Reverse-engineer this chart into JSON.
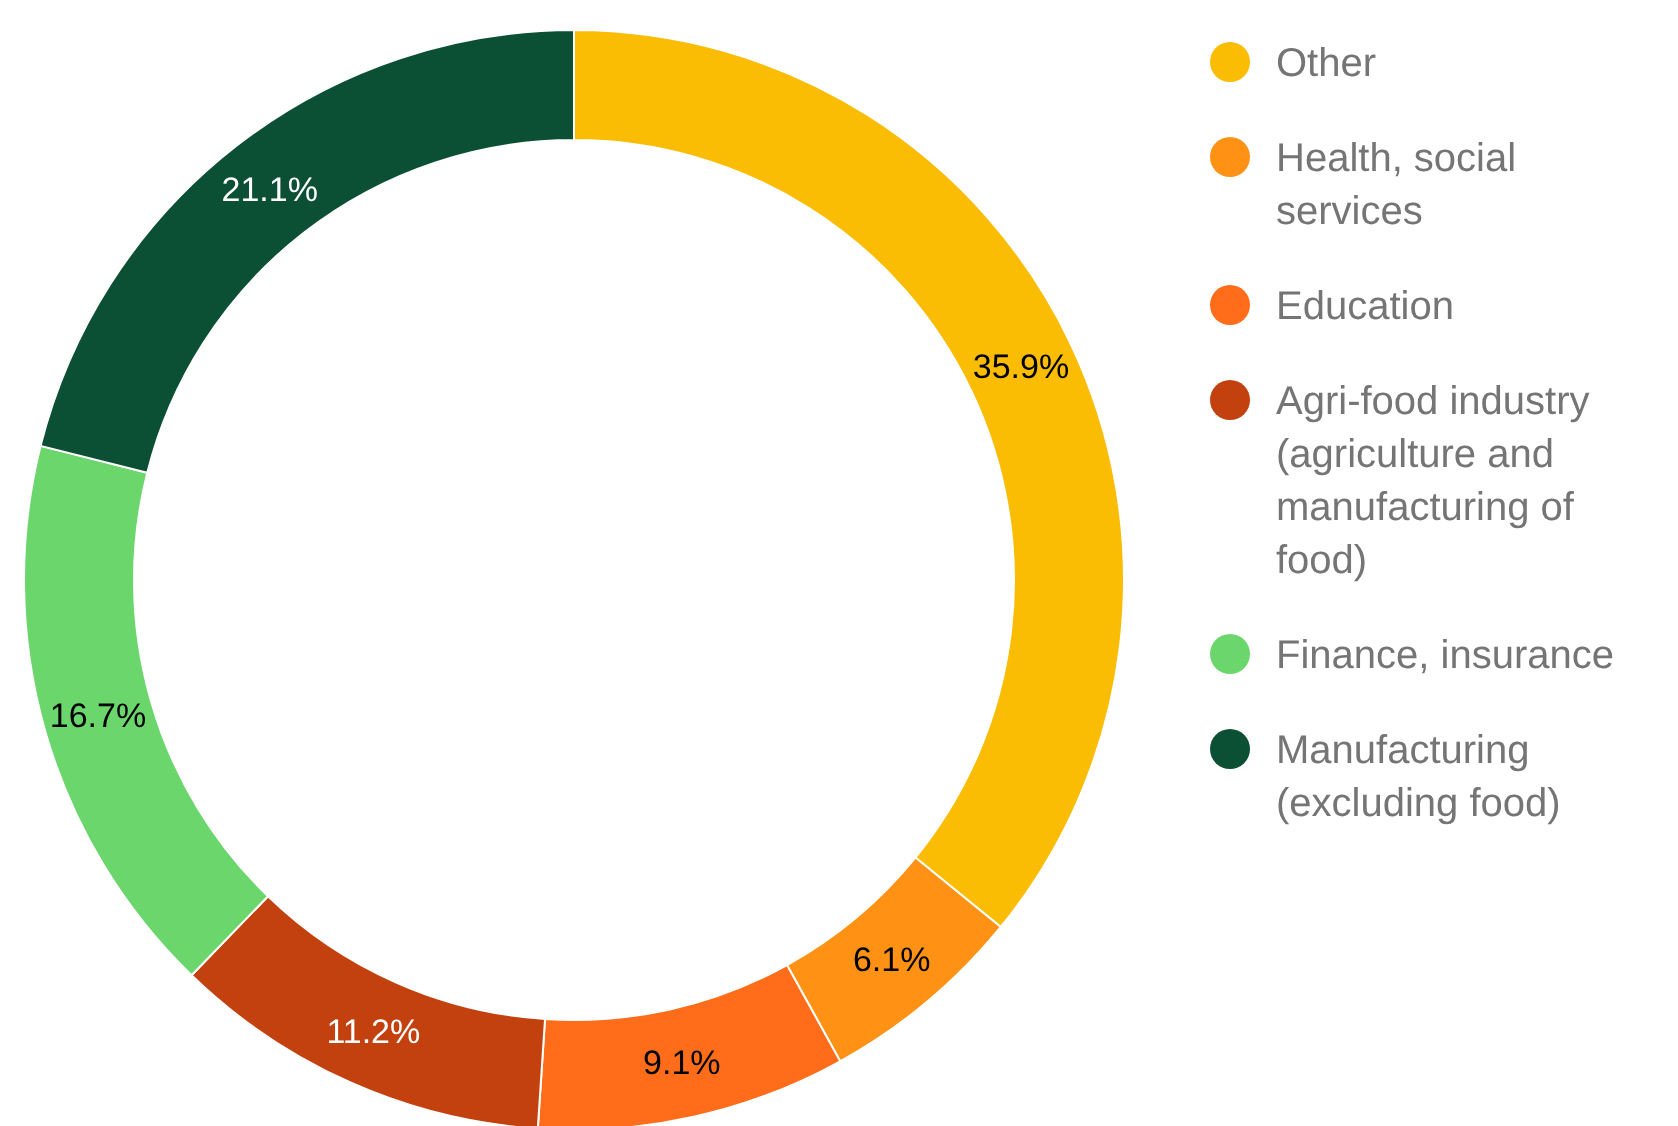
{
  "chart_data": {
    "type": "donut",
    "categories": [
      "Other",
      "Health, social services",
      "Education",
      "Agri-food industry (agriculture and manufacturing of food)",
      "Finance, insurance",
      "Manufacturing (excluding food)"
    ],
    "values": [
      35.9,
      6.1,
      9.1,
      11.2,
      16.7,
      21.1
    ],
    "value_labels": [
      "35.9%",
      "6.1%",
      "9.1%",
      "11.2%",
      "16.7%",
      "21.1%"
    ],
    "colors": [
      "#fbbc04",
      "#ff9214",
      "#ff6d1a",
      "#c2410f",
      "#6bd66c",
      "#0b4f34"
    ],
    "legend": "right"
  }
}
